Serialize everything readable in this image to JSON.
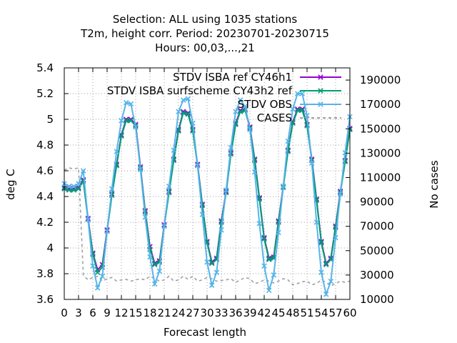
{
  "chart_data": {
    "type": "line",
    "title_lines": [
      "Selection: ALL using  1035 stations",
      "T2m, height corr.    Period: 20230701-20230715",
      "Hours:  00,03,...,21"
    ],
    "xlabel": "Forecast length",
    "ylabel": "deg C",
    "y2label": "No cases",
    "xlim": [
      0,
      60
    ],
    "ylim": [
      3.6,
      5.4
    ],
    "y2lim": [
      10000,
      200000
    ],
    "x_ticks": [
      0,
      3,
      6,
      9,
      12,
      15,
      18,
      21,
      24,
      27,
      30,
      33,
      36,
      39,
      42,
      45,
      48,
      51,
      54,
      57,
      60
    ],
    "x_tick_labels": [
      "0",
      "3",
      "6",
      "9",
      "12",
      "15",
      "18",
      "21",
      "24",
      "27",
      "30",
      "33",
      "36",
      "39",
      "42",
      "45",
      "48",
      "51",
      "54",
      "57",
      "60"
    ],
    "y_ticks": [
      3.6,
      3.8,
      4.0,
      4.2,
      4.4,
      4.6,
      4.8,
      5.0,
      5.2,
      5.4
    ],
    "y_tick_labels": [
      "3.6",
      "3.8",
      "4",
      "4.2",
      "4.4",
      "4.6",
      "4.8",
      "5",
      "5.2",
      "5.4"
    ],
    "y2_ticks": [
      10000,
      30000,
      50000,
      70000,
      90000,
      110000,
      130000,
      150000,
      170000,
      190000
    ],
    "y2_tick_labels": [
      "10000",
      "30000",
      "50000",
      "70000",
      "90000",
      "110000",
      "130000",
      "150000",
      "170000",
      "190000"
    ],
    "grid": true,
    "legend_position": "top-right",
    "x": [
      0,
      1,
      2,
      3,
      4,
      5,
      6,
      7,
      8,
      9,
      10,
      11,
      12,
      13,
      14,
      15,
      16,
      17,
      18,
      19,
      20,
      21,
      22,
      23,
      24,
      25,
      26,
      27,
      28,
      29,
      30,
      31,
      32,
      33,
      34,
      35,
      36,
      37,
      38,
      39,
      40,
      41,
      42,
      43,
      44,
      45,
      46,
      47,
      48,
      49,
      50,
      51,
      52,
      53,
      54,
      55,
      56,
      57,
      58,
      59,
      60
    ],
    "series": [
      {
        "name": "STDV ISBA_ref_CY46h1",
        "legend_label": "STDV ISBA ref CY46h1",
        "color": "#9400d3",
        "marker": "x",
        "axis": "y",
        "x": [
          0,
          1,
          2,
          3,
          4,
          5,
          6,
          7,
          8,
          9,
          10,
          11,
          12,
          13,
          14,
          15,
          16,
          17,
          18,
          19,
          20,
          21,
          22,
          23,
          24,
          25,
          26,
          27,
          28,
          29,
          30,
          31,
          32,
          33,
          34,
          35,
          36,
          37,
          38,
          39,
          40,
          41,
          42,
          43,
          44,
          45,
          46,
          47,
          48,
          49,
          50,
          51,
          52,
          53,
          54,
          55,
          56,
          57,
          58,
          59,
          60
        ],
        "values": [
          4.47,
          4.46,
          4.46,
          4.47,
          4.53,
          4.23,
          3.96,
          3.83,
          3.87,
          4.14,
          4.42,
          4.65,
          4.88,
          5.0,
          5.0,
          4.96,
          4.63,
          4.29,
          4.01,
          3.88,
          3.9,
          4.18,
          4.44,
          4.69,
          4.92,
          5.06,
          5.05,
          4.92,
          4.65,
          4.34,
          4.05,
          3.89,
          3.92,
          4.21,
          4.44,
          4.74,
          4.97,
          5.07,
          5.08,
          4.94,
          4.69,
          4.39,
          4.08,
          3.92,
          3.93,
          4.21,
          4.48,
          4.76,
          4.98,
          5.08,
          5.08,
          4.96,
          4.69,
          4.38,
          4.05,
          3.88,
          3.92,
          4.17,
          4.44,
          4.68,
          4.93
        ]
      },
      {
        "name": "STDV ISBA_surfscheme_CY43h2_ref",
        "legend_label": "STDV ISBA surfscheme CY43h2 ref",
        "color": "#009e73",
        "marker": "x",
        "axis": "y",
        "x": [
          0,
          1,
          2,
          3,
          4,
          5,
          6,
          7,
          8,
          9,
          10,
          11,
          12,
          13,
          14,
          15,
          16,
          17,
          18,
          19,
          20,
          21,
          22,
          23,
          24,
          25,
          26,
          27,
          28,
          29,
          30,
          31,
          32,
          33,
          34,
          35,
          36,
          37,
          38,
          39,
          40,
          41,
          42,
          43,
          44,
          45,
          46,
          47,
          48,
          49,
          50,
          51,
          52,
          53,
          54,
          55,
          56,
          57,
          58,
          59,
          60
        ],
        "values": [
          4.46,
          4.45,
          4.45,
          4.46,
          4.52,
          4.22,
          3.95,
          3.81,
          3.85,
          4.13,
          4.41,
          4.64,
          4.87,
          4.99,
          4.99,
          4.95,
          4.62,
          4.28,
          3.99,
          3.87,
          3.89,
          4.17,
          4.43,
          4.68,
          4.91,
          5.05,
          5.04,
          4.91,
          4.64,
          4.33,
          4.04,
          3.88,
          3.91,
          4.2,
          4.43,
          4.73,
          4.96,
          5.06,
          5.07,
          4.93,
          4.68,
          4.38,
          4.07,
          3.91,
          3.92,
          4.2,
          4.47,
          4.75,
          4.97,
          5.07,
          5.07,
          4.95,
          4.68,
          4.37,
          4.04,
          3.87,
          3.91,
          4.16,
          4.43,
          4.67,
          4.92
        ]
      },
      {
        "name": "STDV OBS",
        "legend_label": "STDV OBS",
        "color": "#56b4e9",
        "marker": "x",
        "axis": "y",
        "x": [
          0,
          1,
          2,
          3,
          4,
          5,
          6,
          7,
          8,
          9,
          10,
          11,
          12,
          13,
          14,
          15,
          16,
          17,
          18,
          19,
          20,
          21,
          22,
          23,
          24,
          25,
          26,
          27,
          28,
          29,
          30,
          31,
          32,
          33,
          34,
          35,
          36,
          37,
          38,
          39,
          40,
          41,
          42,
          43,
          44,
          45,
          46,
          47,
          48,
          49,
          50,
          51,
          52,
          53,
          54,
          55,
          56,
          57,
          58,
          59,
          60
        ],
        "values": [
          4.5,
          4.48,
          4.48,
          4.5,
          4.6,
          4.22,
          3.86,
          3.69,
          3.78,
          4.13,
          4.46,
          4.75,
          4.99,
          5.13,
          5.12,
          4.94,
          4.61,
          4.24,
          3.93,
          3.72,
          3.82,
          4.17,
          4.48,
          4.76,
          5.06,
          5.15,
          5.16,
          4.97,
          4.64,
          4.26,
          3.89,
          3.71,
          3.81,
          4.14,
          4.45,
          4.78,
          5.06,
          5.15,
          5.1,
          4.92,
          4.59,
          4.19,
          3.86,
          3.67,
          3.79,
          4.12,
          4.48,
          4.83,
          5.08,
          5.2,
          5.2,
          5.03,
          4.66,
          4.2,
          3.81,
          3.64,
          3.74,
          4.08,
          4.42,
          4.74,
          5.02
        ]
      },
      {
        "name": "CASES",
        "legend_label": "CASES",
        "color": "#a0a0a0",
        "marker": "none",
        "dash": true,
        "axis": "y2",
        "x": [
          0,
          1,
          2,
          3,
          4,
          5,
          6,
          7,
          8,
          9,
          10,
          11,
          12,
          13,
          14,
          15,
          16,
          17,
          18,
          19,
          20,
          21,
          22,
          23,
          24,
          25,
          26,
          27,
          28,
          29,
          30,
          31,
          32,
          33,
          34,
          35,
          36,
          37,
          38,
          39,
          40,
          41,
          42,
          43,
          44,
          45,
          46,
          47,
          48,
          49,
          50,
          51,
          52,
          53,
          54,
          55,
          56,
          57,
          58,
          59,
          60
        ],
        "values": [
          116000,
          118000,
          117000,
          118000,
          30000,
          26000,
          28000,
          29000,
          25000,
          27000,
          28000,
          25000,
          26000,
          26500,
          25000,
          26000,
          27000,
          26000,
          29000,
          27000,
          25000,
          26000,
          29000,
          25000,
          26000,
          29000,
          26500,
          29000,
          25000,
          26000,
          28000,
          27000,
          25000,
          25500,
          26000,
          27000,
          24000,
          26000,
          28000,
          27000,
          23000,
          24000,
          26000,
          25000,
          23500,
          25000,
          27000,
          26000,
          22000,
          23000,
          24500,
          25000,
          22000,
          23000,
          26000,
          24000,
          21000,
          23000,
          25000,
          24000,
          25000
        ]
      }
    ]
  }
}
